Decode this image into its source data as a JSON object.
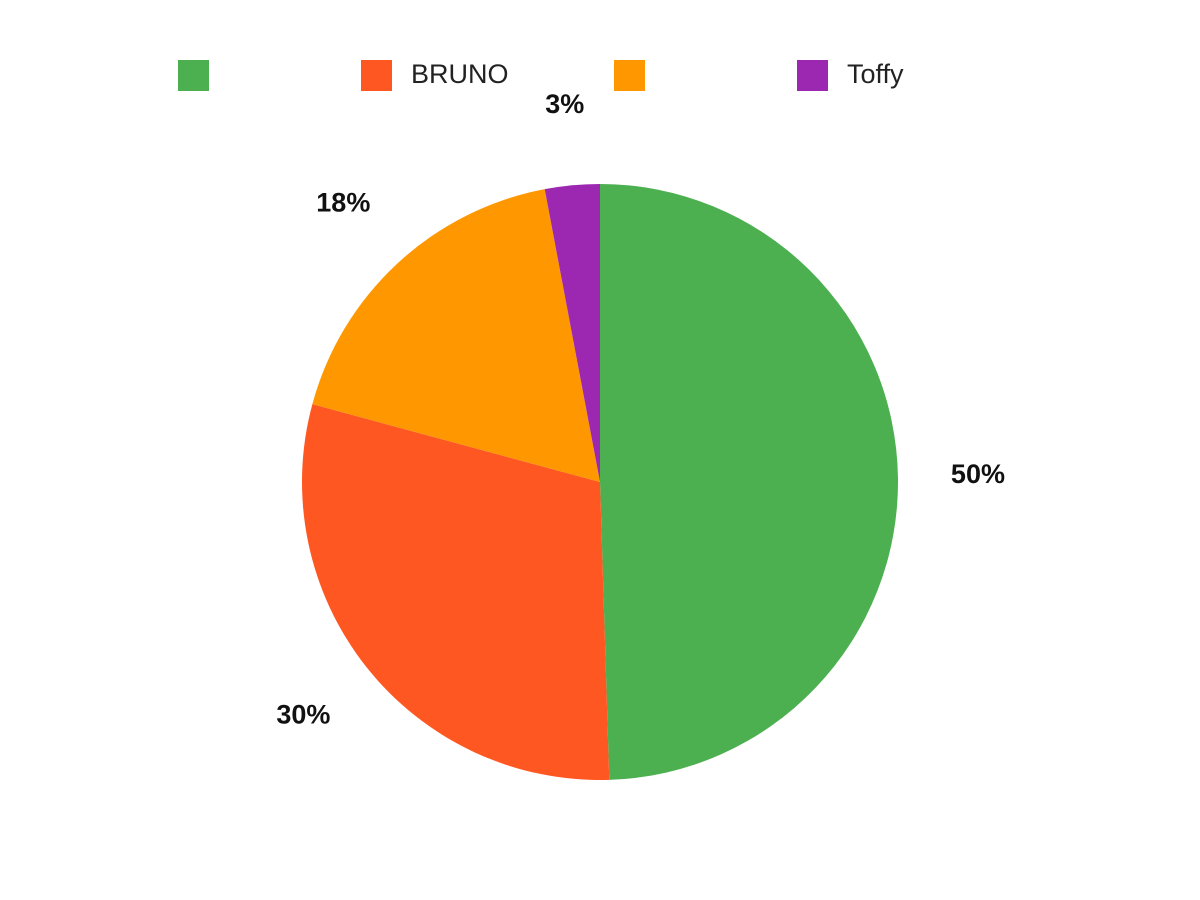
{
  "chart_data": {
    "type": "pie",
    "categories": [
      null,
      "BRUNO",
      null,
      "Toffy"
    ],
    "values": [
      50,
      30,
      18,
      3
    ],
    "value_labels": [
      "50%",
      "30%",
      "18%",
      "3%"
    ],
    "colors": [
      "#4caf50",
      "#ff5722",
      "#ff9800",
      "#9c27b0"
    ],
    "legend": "top"
  }
}
